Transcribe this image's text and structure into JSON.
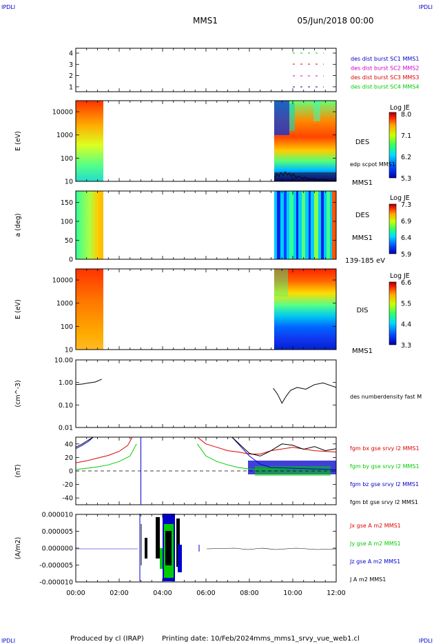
{
  "header": {
    "corner_tl": "IPDLI",
    "corner_tr": "IPDLI",
    "corner_bl": "IPDLI",
    "corner_br": "IPDLI",
    "title": "MMS1",
    "date": "05/Jun/2018 00:00"
  },
  "footer": {
    "produced_by": "Produced by cl (IRAP)",
    "printing_date": "Printing date: 10/Feb/2024",
    "file": "mms_mms1_srvy_vue_web1.cl"
  },
  "colors": {
    "blue": "#0000cc",
    "magenta": "#cc00cc",
    "red": "#dd0000",
    "green": "#00cc00",
    "black": "#000000"
  },
  "chart_data": {
    "x_ticks": [
      "00:00",
      "02:00",
      "04:00",
      "06:00",
      "08:00",
      "10:00",
      "12:00"
    ],
    "xlim_hours": [
      0,
      12
    ],
    "panels": [
      {
        "id": "burst",
        "type": "scatter",
        "yticks": [
          "4",
          "3",
          "2",
          "1"
        ],
        "legend": [
          "des dist burst SC1 MMS1",
          "des dist burst SC2 MMS2",
          "des dist burst SC3 MMS3",
          "des dist burst SC4 MMS4"
        ],
        "legend_colors": [
          "#0000cc",
          "#cc00cc",
          "#dd0000",
          "#00cc00"
        ]
      },
      {
        "id": "des_energy",
        "type": "heatmap",
        "ylabel": "E (eV)",
        "yticks": [
          "10000",
          "1000",
          "100",
          "10"
        ],
        "ylim": [
          10,
          30000
        ],
        "label": "DES",
        "sublabel": "MMS1",
        "overlay": "edp scpot MMS1",
        "colorbar_title": "Log JE",
        "colorbar_ticks": [
          "8.0",
          "7.1",
          "6.2",
          "5.3"
        ]
      },
      {
        "id": "des_pitch",
        "type": "heatmap",
        "ylabel": "a (deg)",
        "yticks": [
          "150",
          "100",
          "50",
          "0"
        ],
        "ylim": [
          0,
          180
        ],
        "label": "DES",
        "sublabel": "MMS1",
        "energy_band": "139-185 eV",
        "colorbar_title": "Log JE",
        "colorbar_ticks": [
          "7.3",
          "6.9",
          "6.4",
          "5.9"
        ]
      },
      {
        "id": "dis_energy",
        "type": "heatmap",
        "ylabel": "E (eV)",
        "yticks": [
          "10000",
          "1000",
          "100",
          "10"
        ],
        "ylim": [
          10,
          30000
        ],
        "label": "DIS",
        "sublabel": "MMS1",
        "colorbar_title": "Log JE",
        "colorbar_ticks": [
          "6.6",
          "5.5",
          "4.4",
          "3.3"
        ]
      },
      {
        "id": "density",
        "type": "line",
        "ylabel": "(cm^-3)",
        "yticks": [
          "10.00",
          "1.00",
          "0.10",
          "0.01"
        ],
        "ylim": [
          0.01,
          10
        ],
        "legend": [
          "des numberdensity fast M"
        ],
        "series": [
          {
            "x": [
              0.0,
              0.3,
              0.6,
              0.9,
              1.2
            ],
            "y": [
              0.8,
              0.85,
              0.95,
              1.05,
              1.4
            ]
          },
          {
            "x": [
              9.1,
              9.3,
              9.5,
              9.7,
              9.9,
              10.2,
              10.6,
              11.0,
              11.4,
              11.8,
              12.0
            ],
            "y": [
              0.55,
              0.3,
              0.12,
              0.25,
              0.45,
              0.6,
              0.5,
              0.8,
              0.95,
              0.7,
              0.6
            ]
          }
        ]
      },
      {
        "id": "b_field",
        "type": "line",
        "ylabel": "(nT)",
        "yticks": [
          "40",
          "20",
          "0",
          "-20",
          "-40"
        ],
        "ylim": [
          -50,
          50
        ],
        "legend": [
          "fgm bx gse srvy l2 MMS1",
          "fgm by gse srvy l2 MMS1",
          "fgm bz gse srvy l2 MMS1",
          "fgm bt gse srvy l2 MMS1"
        ],
        "legend_colors": [
          "#dd0000",
          "#00cc00",
          "#0000cc",
          "#000000"
        ],
        "series": [
          {
            "name": "fgm bx gse srvy l2 MMS1",
            "x": [
              0.0,
              0.5,
              1.0,
              1.5,
              2.0,
              2.4,
              2.6,
              5.6,
              6.0,
              6.5,
              7.0,
              7.5,
              8.0,
              8.5,
              9.0,
              10.0,
              11.0,
              12.0
            ],
            "y": [
              12,
              15,
              19,
              23,
              29,
              38,
              50,
              50,
              40,
              35,
              30,
              28,
              25,
              25,
              30,
              35,
              30,
              28
            ]
          },
          {
            "name": "fgm by gse srvy l2 MMS1",
            "x": [
              0.0,
              0.5,
              1.0,
              1.5,
              2.0,
              2.5,
              2.8,
              5.6,
              6.0,
              6.5,
              7.0,
              7.5,
              8.0,
              8.5,
              9.0,
              10.0,
              11.0,
              12.0
            ],
            "y": [
              2,
              4,
              6,
              9,
              14,
              22,
              40,
              40,
              22,
              14,
              9,
              5,
              3,
              2,
              3,
              4,
              3,
              2
            ]
          },
          {
            "name": "fgm bz gse srvy l2 MMS1",
            "x": [
              0.0,
              0.3,
              0.6,
              0.8,
              7.2,
              7.6,
              8.0,
              8.5,
              9.0,
              10.0,
              11.0,
              12.0
            ],
            "y": [
              33,
              38,
              44,
              50,
              50,
              36,
              22,
              10,
              5,
              4,
              3,
              2
            ]
          },
          {
            "name": "fgm bt gse srvy l2 MMS1",
            "x": [
              0.0,
              0.3,
              0.6,
              0.8,
              7.2,
              7.6,
              8.0,
              8.5,
              9.0,
              9.5,
              10.0,
              10.5,
              11.0,
              11.5,
              12.0
            ],
            "y": [
              35,
              40,
              46,
              50,
              50,
              38,
              26,
              22,
              30,
              40,
              38,
              32,
              36,
              30,
              33
            ]
          }
        ]
      },
      {
        "id": "current",
        "type": "line",
        "ylabel": "(A/m2)",
        "yticks": [
          "0.000010",
          "0.000005",
          "0.000000",
          "-0.000005",
          "-0.000010"
        ],
        "ylim": [
          -1e-05,
          1e-05
        ],
        "legend": [
          "Jx gse A m2 MMS1",
          "Jy gse A m2 MMS1",
          "Jz gse A m2 MMS1",
          "J A m2 MMS1"
        ],
        "legend_colors": [
          "#dd0000",
          "#00cc00",
          "#0000cc",
          "#000000"
        ]
      }
    ]
  }
}
